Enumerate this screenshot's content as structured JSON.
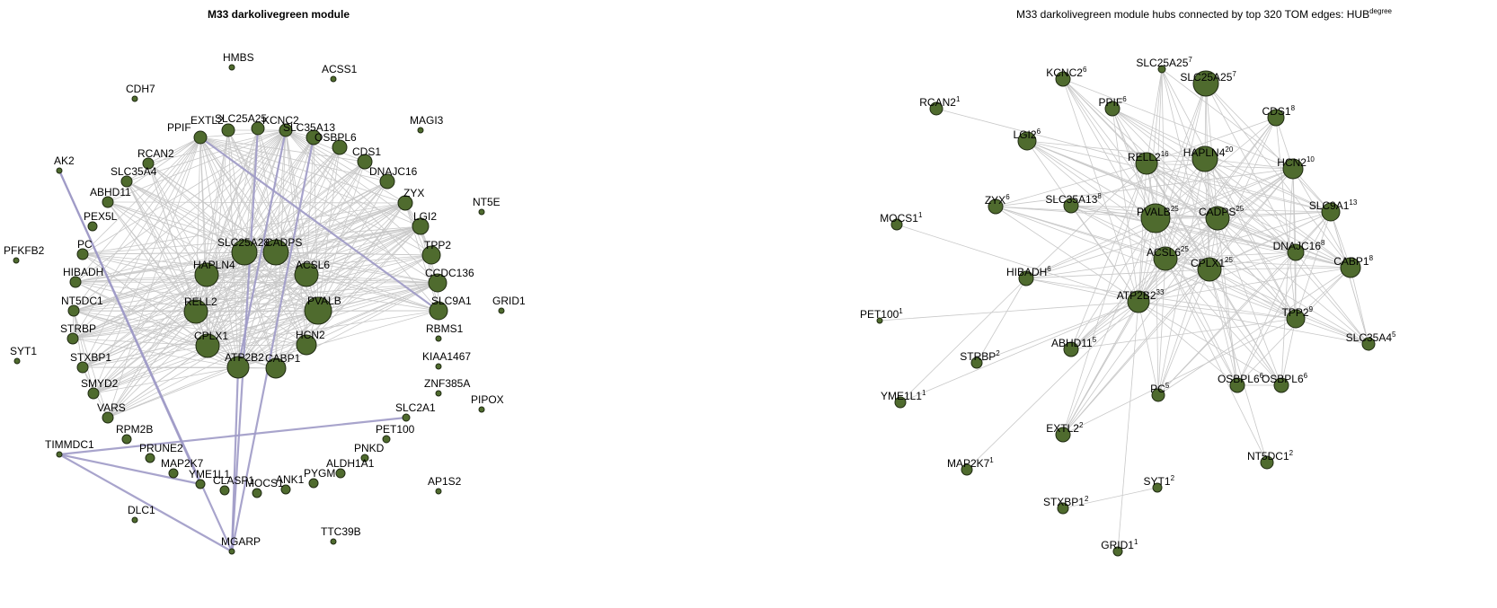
{
  "left_panel": {
    "title": "M33 darkolivegreen module",
    "nodes": [
      {
        "id": "HMBS",
        "size": 3
      },
      {
        "id": "ACSS1",
        "size": 3
      },
      {
        "id": "CDH7",
        "size": 3
      },
      {
        "id": "MAGI3",
        "size": 3
      },
      {
        "id": "OSBPL6",
        "size": 8
      },
      {
        "id": "SLC25A25",
        "size": 7
      },
      {
        "id": "KCNC2",
        "size": 7
      },
      {
        "id": "SLC35A13",
        "size": 8
      },
      {
        "id": "EXTL2",
        "size": 7
      },
      {
        "id": "PPIF",
        "size": 7
      },
      {
        "id": "CDS1",
        "size": 8
      },
      {
        "id": "DNAJC16",
        "size": 8
      },
      {
        "id": "AK2",
        "size": 3
      },
      {
        "id": "RCAN2",
        "size": 6
      },
      {
        "id": "SLC35A4",
        "size": 6
      },
      {
        "id": "ZYX",
        "size": 8
      },
      {
        "id": "ABHD11",
        "size": 6
      },
      {
        "id": "NT5E",
        "size": 3
      },
      {
        "id": "LGI2",
        "size": 9
      },
      {
        "id": "PEX5L",
        "size": 5
      },
      {
        "id": "SLC25A28",
        "size": 14
      },
      {
        "id": "CADPS",
        "size": 14
      },
      {
        "id": "PC",
        "size": 6
      },
      {
        "id": "TPP2",
        "size": 10
      },
      {
        "id": "PFKFB2",
        "size": 3
      },
      {
        "id": "HAPLN4",
        "size": 13
      },
      {
        "id": "ACSL6",
        "size": 13
      },
      {
        "id": "CCDC136",
        "size": 10
      },
      {
        "id": "HIBADH",
        "size": 6
      },
      {
        "id": "RELL2",
        "size": 13
      },
      {
        "id": "PVALB",
        "size": 15
      },
      {
        "id": "SLC9A1",
        "size": 10
      },
      {
        "id": "GRID1",
        "size": 3
      },
      {
        "id": "NT5DC1",
        "size": 6
      },
      {
        "id": "RBMS1",
        "size": 3
      },
      {
        "id": "STRBP",
        "size": 6
      },
      {
        "id": "CPLX1",
        "size": 13
      },
      {
        "id": "HCN2",
        "size": 11
      },
      {
        "id": "SYT1",
        "size": 3
      },
      {
        "id": "STXBP1",
        "size": 6
      },
      {
        "id": "ATP2B2",
        "size": 12
      },
      {
        "id": "CABP1",
        "size": 11
      },
      {
        "id": "KIAA1467",
        "size": 3
      },
      {
        "id": "SMYD2",
        "size": 6
      },
      {
        "id": "ZNF385A",
        "size": 3
      },
      {
        "id": "PIPOX",
        "size": 3
      },
      {
        "id": "VARS",
        "size": 6
      },
      {
        "id": "SLC2A1",
        "size": 4
      },
      {
        "id": "RPM2B",
        "size": 5
      },
      {
        "id": "PET100",
        "size": 4
      },
      {
        "id": "TIMMDC1",
        "size": 3
      },
      {
        "id": "PRUNE2",
        "size": 5
      },
      {
        "id": "PNKD",
        "size": 4
      },
      {
        "id": "MAP2K7",
        "size": 5
      },
      {
        "id": "YME1L1",
        "size": 5
      },
      {
        "id": "CLASP1",
        "size": 5
      },
      {
        "id": "MOCS1",
        "size": 5
      },
      {
        "id": "ANK1",
        "size": 5
      },
      {
        "id": "PYGM",
        "size": 5
      },
      {
        "id": "ALDH1A1",
        "size": 5
      },
      {
        "id": "AP1S2",
        "size": 3
      },
      {
        "id": "DLC1",
        "size": 3
      },
      {
        "id": "MGARP",
        "size": 3
      },
      {
        "id": "TTC39B",
        "size": 3
      }
    ],
    "hub_edges": [
      [
        "PPIF",
        "SLC9A1"
      ],
      [
        "AK2",
        "MGARP"
      ],
      [
        "AK2",
        "YME1L1"
      ],
      [
        "TIMMDC1",
        "MGARP"
      ],
      [
        "TIMMDC1",
        "YME1L1"
      ],
      [
        "TIMMDC1",
        "SLC2A1"
      ],
      [
        "SLC25A25",
        "MGARP"
      ],
      [
        "SLC35A13",
        "MGARP"
      ],
      [
        "KCNC2",
        "ATP2B2"
      ],
      [
        "ATP2B2",
        "MGARP"
      ]
    ]
  },
  "right_panel": {
    "title": "M33 darkolivegreen module hubs connected by top 320 TOM edges: HUB",
    "title_sup": "degree",
    "nodes": [
      {
        "id": "SLC25A25",
        "deg": "7",
        "size": 4
      },
      {
        "id": "SLC25A25",
        "deg": "7",
        "size": 14
      },
      {
        "id": "KCNC2",
        "deg": "6",
        "size": 8
      },
      {
        "id": "RCAN2",
        "deg": "1",
        "size": 7
      },
      {
        "id": "PPIF",
        "deg": "6",
        "size": 8
      },
      {
        "id": "CDS1",
        "deg": "8",
        "size": 9
      },
      {
        "id": "LGI2",
        "deg": "6",
        "size": 10
      },
      {
        "id": "HAPLN4",
        "deg": "20",
        "size": 14
      },
      {
        "id": "RELL2",
        "deg": "16",
        "size": 12
      },
      {
        "id": "HCN2",
        "deg": "10",
        "size": 11
      },
      {
        "id": "ZYX",
        "deg": "6",
        "size": 8
      },
      {
        "id": "SLC35A13",
        "deg": "8",
        "size": 8
      },
      {
        "id": "SLC9A1",
        "deg": "13",
        "size": 10
      },
      {
        "id": "MOCS1",
        "deg": "1",
        "size": 6
      },
      {
        "id": "PVALB",
        "deg": "25",
        "size": 16
      },
      {
        "id": "CADPS",
        "deg": "25",
        "size": 13
      },
      {
        "id": "DNAJC16",
        "deg": "8",
        "size": 9
      },
      {
        "id": "ACSL6",
        "deg": "25",
        "size": 13
      },
      {
        "id": "CPLX1",
        "deg": "25",
        "size": 13
      },
      {
        "id": "HIBADH",
        "deg": "6",
        "size": 8
      },
      {
        "id": "CABP1",
        "deg": "8",
        "size": 11
      },
      {
        "id": "PET100",
        "deg": "1",
        "size": 3
      },
      {
        "id": "ATP2B2",
        "deg": "33",
        "size": 12
      },
      {
        "id": "TPP2",
        "deg": "9",
        "size": 10
      },
      {
        "id": "SLC35A4",
        "deg": "5",
        "size": 7
      },
      {
        "id": "STRBP",
        "deg": "2",
        "size": 6
      },
      {
        "id": "ABHD11",
        "deg": "5",
        "size": 8
      },
      {
        "id": "OSBPL6",
        "deg": "6",
        "size": 8
      },
      {
        "id": "OSBPL6",
        "deg": "6",
        "size": 8
      },
      {
        "id": "YME1L1",
        "deg": "1",
        "size": 6
      },
      {
        "id": "PC",
        "deg": "5",
        "size": 7
      },
      {
        "id": "EXTL2",
        "deg": "2",
        "size": 8
      },
      {
        "id": "NT5DC1",
        "deg": "2",
        "size": 7
      },
      {
        "id": "MAP2K7",
        "deg": "1",
        "size": 6
      },
      {
        "id": "SYT1",
        "deg": "2",
        "size": 5
      },
      {
        "id": "STXBP1",
        "deg": "2",
        "size": 6
      },
      {
        "id": "GRID1",
        "deg": "1",
        "size": 5
      }
    ]
  }
}
